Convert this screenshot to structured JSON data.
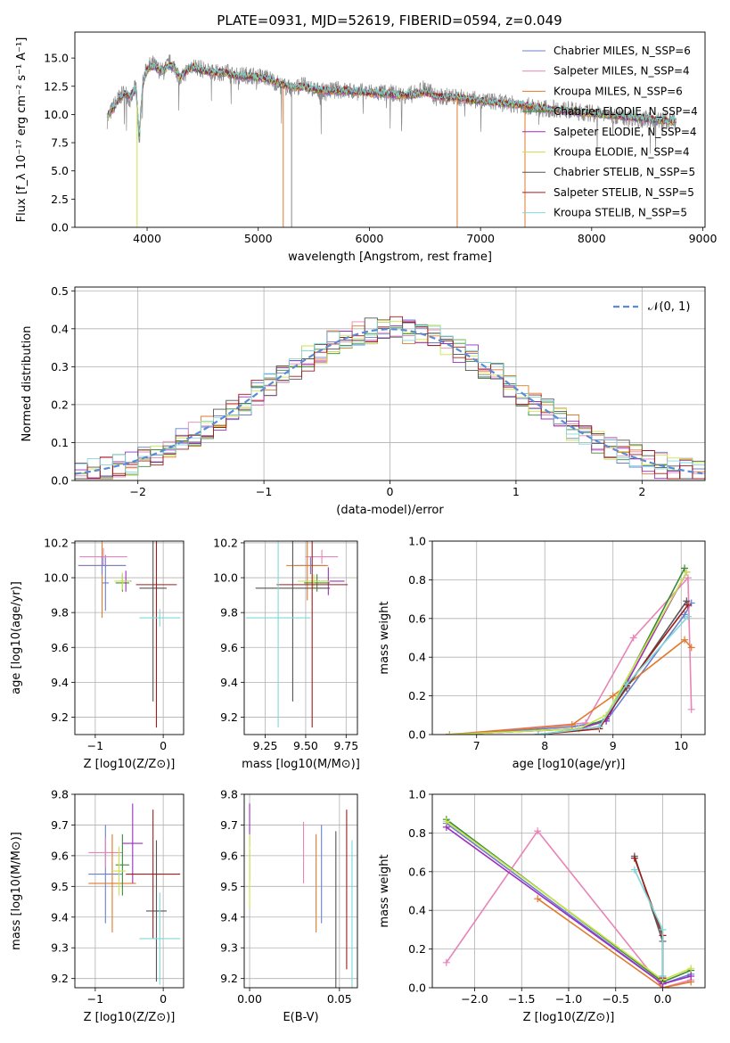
{
  "figure_title": "PLATE=0931, MJD=52619, FIBERID=0594, z=0.049",
  "colors": {
    "Chabrier MILES": "#6b7fd0",
    "Salpeter MILES": "#e884b6",
    "Kroupa MILES": "#e07a2c",
    "Chabrier ELODIE": "#3a8a3a",
    "Salpeter ELODIE": "#9b2ec0",
    "Kroupa ELODIE": "#cbe34a",
    "Chabrier STELIB": "#555555",
    "Salpeter STELIB": "#a01c1c",
    "Kroupa STELIB": "#7fd8d8",
    "data": "#8a8a8a",
    "normal_curve": "#5b8bd6"
  },
  "chart_data": [
    {
      "id": "spectrum",
      "type": "line",
      "title": "PLATE=0931, MJD=52619, FIBERID=0594, z=0.049",
      "xlabel": "wavelength [Angstrom, rest frame]",
      "ylabel": "Flux [f_λ 10⁻¹⁷ erg cm⁻² s⁻¹ A⁻¹]",
      "xlim": [
        3350,
        9020
      ],
      "ylim": [
        0,
        17.3
      ],
      "xticks": [
        "4000",
        "5000",
        "6000",
        "7000",
        "8000",
        "9000"
      ],
      "yticks": [
        "0.0",
        "2.5",
        "5.0",
        "7.5",
        "10.0",
        "12.5",
        "15.0"
      ],
      "legend": [
        "Chabrier MILES, N_SSP=6",
        "Salpeter MILES, N_SSP=4",
        "Kroupa MILES, N_SSP=6",
        "Chabrier ELODIE, N_SSP=4",
        "Salpeter ELODIE, N_SSP=4",
        "Kroupa ELODIE, N_SSP=4",
        "Chabrier STELIB, N_SSP=5",
        "Salpeter STELIB, N_SSP=5",
        "Kroupa STELIB, N_SSP=5"
      ],
      "legend_placement": "upper-right",
      "grid": false,
      "x": [
        3640,
        3700,
        3750,
        3800,
        3850,
        3900,
        3930,
        3960,
        4000,
        4050,
        4100,
        4150,
        4200,
        4250,
        4300,
        4350,
        4400,
        4500,
        4600,
        4700,
        4800,
        4900,
        5000,
        5100,
        5200,
        5300,
        5400,
        5500,
        5600,
        5700,
        5800,
        5900,
        6000,
        6100,
        6200,
        6300,
        6400,
        6500,
        6600,
        6700,
        6800,
        6900,
        7000,
        7100,
        7200,
        7300,
        7400,
        7500,
        7600,
        7700,
        7800,
        7900,
        8000,
        8100,
        8200,
        8300,
        8400,
        8500,
        8600,
        8700,
        8760
      ],
      "data_flux": [
        9.5,
        10.8,
        11.5,
        12.0,
        11.2,
        12.6,
        7.5,
        12.8,
        14.2,
        14.5,
        14.0,
        13.8,
        14.6,
        14.2,
        13.0,
        13.8,
        14.4,
        14.0,
        13.6,
        13.8,
        13.4,
        13.5,
        13.4,
        13.2,
        12.6,
        12.3,
        12.6,
        12.2,
        12.0,
        12.2,
        12.1,
        12.0,
        12.0,
        11.9,
        11.9,
        11.7,
        11.8,
        12.4,
        11.5,
        11.6,
        11.5,
        11.4,
        11.2,
        11.2,
        11.0,
        10.9,
        10.8,
        10.6,
        10.5,
        10.5,
        10.4,
        10.2,
        10.1,
        10.0,
        9.9,
        9.8,
        9.7,
        9.6,
        9.5,
        9.4,
        9.4
      ],
      "model_flux": [
        9.8,
        10.6,
        11.4,
        11.9,
        11.6,
        12.3,
        8.0,
        12.6,
        14.0,
        14.3,
        14.0,
        13.9,
        14.4,
        14.1,
        13.3,
        13.8,
        14.2,
        13.9,
        13.7,
        13.7,
        13.4,
        13.4,
        13.3,
        13.1,
        12.7,
        12.4,
        12.5,
        12.2,
        12.1,
        12.1,
        12.1,
        12.0,
        11.9,
        11.9,
        11.8,
        11.7,
        11.7,
        12.0,
        11.6,
        11.5,
        11.5,
        11.3,
        11.2,
        11.1,
        11.0,
        10.9,
        10.8,
        10.6,
        10.5,
        10.4,
        10.3,
        10.2,
        10.1,
        10.0,
        9.9,
        9.8,
        9.7,
        9.6,
        9.5,
        9.4,
        9.4
      ],
      "spikes": [
        {
          "x": 3910,
          "ymin": 0,
          "series": "Kroupa ELODIE"
        },
        {
          "x": 5225,
          "ymin": 0,
          "series": "Kroupa MILES"
        },
        {
          "x": 6790,
          "ymin": 0,
          "series": "Kroupa MILES"
        },
        {
          "x": 7400,
          "ymin": 0,
          "series": "Kroupa MILES"
        },
        {
          "x": 5300,
          "ymin": 0,
          "series": "data"
        }
      ]
    },
    {
      "id": "residuals",
      "type": "histogram",
      "xlabel": "(data-model)/error",
      "ylabel": "Normed distribution",
      "xlim": [
        -2.5,
        2.5
      ],
      "ylim": [
        0,
        0.51
      ],
      "xticks": [
        "−2",
        "−1",
        "0",
        "1",
        "2"
      ],
      "yticks": [
        "0.0",
        "0.1",
        "0.2",
        "0.3",
        "0.4",
        "0.5"
      ],
      "grid": true,
      "legend": [
        "𝒩(0, 1)"
      ],
      "legend_placement": "upper-right",
      "bin_edges_start": -2.5,
      "bin_width": 0.1
    },
    {
      "id": "age-vs-Z",
      "type": "errorbar",
      "xlabel": "Z [log10(Z/Z⊙)]",
      "ylabel": "age  [log10(age/yr)]",
      "xlim": [
        -1.3,
        0.3
      ],
      "ylim": [
        9.1,
        10.21
      ],
      "xticks": [
        "−1",
        "0"
      ],
      "yticks": [
        "9.2",
        "9.4",
        "9.6",
        "9.8",
        "10.0",
        "10.2"
      ],
      "grid": true,
      "points": [
        {
          "series": "Chabrier MILES",
          "x": -0.85,
          "y": 9.97,
          "xerr": 0.05,
          "yerr": 0.16
        },
        {
          "series": "Salpeter MILES",
          "x": -0.88,
          "y": 10.12,
          "xerr": 0.35,
          "yerr": 0.05
        },
        {
          "series": "Kroupa MILES",
          "x": -0.9,
          "y": 10.07,
          "xerr": 0.35,
          "yerr": 0.3
        },
        {
          "series": "Chabrier ELODIE",
          "x": -0.6,
          "y": 9.97,
          "xerr": 0.1,
          "yerr": 0.05
        },
        {
          "series": "Salpeter ELODIE",
          "x": -0.55,
          "y": 9.98,
          "xerr": 0.08,
          "yerr": 0.06
        },
        {
          "series": "Kroupa ELODIE",
          "x": -0.6,
          "y": 9.98,
          "xerr": 0.12,
          "yerr": 0.05
        },
        {
          "series": "Chabrier STELIB",
          "x": -0.15,
          "y": 9.94,
          "xerr": 0.2,
          "yerr": 0.65
        },
        {
          "series": "Salpeter STELIB",
          "x": -0.1,
          "y": 9.96,
          "xerr": 0.3,
          "yerr": 0.82
        },
        {
          "series": "Kroupa STELIB",
          "x": -0.05,
          "y": 9.77,
          "xerr": 0.3,
          "yerr": 0.05
        },
        {
          "series": "Chabrier MILES",
          "x": -0.9,
          "y": 10.07,
          "xerr": 0.35,
          "yerr": 0.05
        }
      ]
    },
    {
      "id": "age-vs-mass",
      "type": "errorbar",
      "xlabel": "mass [log10(M/M⊙)]",
      "ylabel": "",
      "xlim": [
        9.12,
        9.82
      ],
      "ylim": [
        9.1,
        10.21
      ],
      "xticks": [
        "9.25",
        "9.50",
        "9.75"
      ],
      "yticks": [
        "9.2",
        "9.4",
        "9.6",
        "9.8",
        "10.0",
        "10.2"
      ],
      "grid": true,
      "points": [
        {
          "series": "Chabrier MILES",
          "x": 9.53,
          "y": 10.07,
          "xerr": 0.1,
          "yerr": 0.05
        },
        {
          "series": "Salpeter MILES",
          "x": 9.6,
          "y": 10.12,
          "xerr": 0.1,
          "yerr": 0.04
        },
        {
          "series": "Kroupa MILES",
          "x": 9.51,
          "y": 10.07,
          "xerr": 0.13,
          "yerr": 0.2
        },
        {
          "series": "Chabrier ELODIE",
          "x": 9.57,
          "y": 9.97,
          "xerr": 0.08,
          "yerr": 0.05
        },
        {
          "series": "Salpeter ELODIE",
          "x": 9.64,
          "y": 9.98,
          "xerr": 0.1,
          "yerr": 0.08
        },
        {
          "series": "Kroupa ELODIE",
          "x": 9.55,
          "y": 9.98,
          "xerr": 0.1,
          "yerr": 0.04
        },
        {
          "series": "Chabrier STELIB",
          "x": 9.42,
          "y": 9.94,
          "xerr": 0.23,
          "yerr": 0.65
        },
        {
          "series": "Salpeter STELIB",
          "x": 9.54,
          "y": 9.96,
          "xerr": 0.22,
          "yerr": 0.82
        },
        {
          "series": "Kroupa STELIB",
          "x": 9.33,
          "y": 9.77,
          "xerr": 0.2,
          "yerr": 0.63
        }
      ]
    },
    {
      "id": "weight-vs-age",
      "type": "line",
      "xlabel": "age  [log10(age/yr)]",
      "ylabel": "mass weight",
      "xlim": [
        6.35,
        10.35
      ],
      "ylim": [
        0,
        1.0
      ],
      "xticks": [
        "7",
        "8",
        "9",
        "10"
      ],
      "yticks": [
        "0.0",
        "0.2",
        "0.4",
        "0.6",
        "0.8",
        "1.0"
      ],
      "grid": true,
      "series": [
        {
          "name": "Chabrier MILES",
          "x": [
            6.6,
            8.4,
            8.9,
            10.05,
            10.15
          ],
          "y": [
            0.0,
            0.04,
            0.07,
            0.62,
            0.68
          ]
        },
        {
          "name": "Salpeter MILES",
          "x": [
            6.6,
            8.6,
            9.3,
            10.1,
            10.15
          ],
          "y": [
            0.0,
            0.06,
            0.5,
            0.81,
            0.13
          ]
        },
        {
          "name": "Kroupa MILES",
          "x": [
            6.6,
            8.4,
            9.0,
            10.05,
            10.15
          ],
          "y": [
            0.0,
            0.05,
            0.2,
            0.49,
            0.45
          ]
        },
        {
          "name": "Chabrier ELODIE",
          "x": [
            6.6,
            8.5,
            8.9,
            10.05
          ],
          "y": [
            0.0,
            0.03,
            0.08,
            0.86
          ]
        },
        {
          "name": "Salpeter ELODIE",
          "x": [
            6.6,
            8.5,
            8.9,
            10.08
          ],
          "y": [
            0.0,
            0.03,
            0.07,
            0.84
          ]
        },
        {
          "name": "Kroupa ELODIE",
          "x": [
            6.6,
            8.5,
            8.9,
            10.08
          ],
          "y": [
            0.0,
            0.03,
            0.1,
            0.84
          ]
        },
        {
          "name": "Chabrier STELIB",
          "x": [
            7.9,
            8.8,
            9.2,
            10.08
          ],
          "y": [
            0.0,
            0.04,
            0.24,
            0.69
          ]
        },
        {
          "name": "Salpeter STELIB",
          "x": [
            7.9,
            8.8,
            9.2,
            10.1
          ],
          "y": [
            0.0,
            0.03,
            0.25,
            0.67
          ]
        },
        {
          "name": "Kroupa STELIB",
          "x": [
            7.9,
            8.8,
            9.2,
            10.1
          ],
          "y": [
            0.0,
            0.04,
            0.26,
            0.61
          ]
        }
      ]
    },
    {
      "id": "mass-vs-Z",
      "type": "errorbar",
      "xlabel": "Z [log10(Z/Z⊙)]",
      "ylabel": "mass [log10(M/M⊙)]",
      "xlim": [
        -1.3,
        0.3
      ],
      "ylim": [
        9.17,
        9.8
      ],
      "xticks": [
        "−1",
        "0"
      ],
      "yticks": [
        "9.2",
        "9.3",
        "9.4",
        "9.5",
        "9.6",
        "9.7",
        "9.8"
      ],
      "grid": true,
      "points": [
        {
          "series": "Chabrier MILES",
          "x": -0.85,
          "y": 9.54,
          "xerr": 0.25,
          "yerr": 0.16
        },
        {
          "series": "Salpeter MILES",
          "x": -0.85,
          "y": 9.61,
          "xerr": 0.25,
          "yerr": 0.05
        },
        {
          "series": "Kroupa MILES",
          "x": -0.75,
          "y": 9.51,
          "xerr": 0.35,
          "yerr": 0.16
        },
        {
          "series": "Chabrier ELODIE",
          "x": -0.6,
          "y": 9.57,
          "xerr": 0.1,
          "yerr": 0.1
        },
        {
          "series": "Salpeter ELODIE",
          "x": -0.45,
          "y": 9.64,
          "xerr": 0.15,
          "yerr": 0.13
        },
        {
          "series": "Kroupa ELODIE",
          "x": -0.65,
          "y": 9.55,
          "xerr": 0.1,
          "yerr": 0.08
        },
        {
          "series": "Chabrier STELIB",
          "x": -0.1,
          "y": 9.42,
          "xerr": 0.15,
          "yerr": 0.23
        },
        {
          "series": "Salpeter STELIB",
          "x": -0.15,
          "y": 9.54,
          "xerr": 0.4,
          "yerr": 0.21
        },
        {
          "series": "Kroupa STELIB",
          "x": -0.05,
          "y": 9.33,
          "xerr": 0.3,
          "yerr": 0.15
        }
      ]
    },
    {
      "id": "mass-vs-ebv",
      "type": "errorbar",
      "xlabel": "E(B-V)",
      "ylabel": "",
      "xlim": [
        -0.003,
        0.06
      ],
      "ylim": [
        9.17,
        9.8
      ],
      "xticks": [
        "0.00",
        "0.05"
      ],
      "yticks": [
        "9.2",
        "9.3",
        "9.4",
        "9.5",
        "9.6",
        "9.7",
        "9.8"
      ],
      "grid": true,
      "points": [
        {
          "series": "Chabrier MILES",
          "x": 0.04,
          "y": 9.54,
          "xerr": 0,
          "yerr": 0.16
        },
        {
          "series": "Salpeter MILES",
          "x": 0.03,
          "y": 9.61,
          "xerr": 0,
          "yerr": 0.1
        },
        {
          "series": "Kroupa MILES",
          "x": 0.037,
          "y": 9.51,
          "xerr": 0,
          "yerr": 0.16
        },
        {
          "series": "Chabrier ELODIE",
          "x": 0.0,
          "y": 9.57,
          "xerr": 0,
          "yerr": 0.05
        },
        {
          "series": "Salpeter ELODIE",
          "x": 0.0,
          "y": 9.7,
          "xerr": 0,
          "yerr": 0.07
        },
        {
          "series": "Kroupa ELODIE",
          "x": 0.0,
          "y": 9.55,
          "xerr": 0,
          "yerr": 0.12
        },
        {
          "series": "Chabrier STELIB",
          "x": 0.048,
          "y": 9.42,
          "xerr": 0,
          "yerr": 0.26
        },
        {
          "series": "Salpeter STELIB",
          "x": 0.054,
          "y": 9.49,
          "xerr": 0,
          "yerr": 0.26
        },
        {
          "series": "Kroupa STELIB",
          "x": 0.057,
          "y": 9.41,
          "xerr": 0,
          "yerr": 0.24
        }
      ]
    },
    {
      "id": "weight-vs-Z",
      "type": "line",
      "xlabel": "Z [log10(Z/Z⊙)]",
      "ylabel": "mass weight",
      "xlim": [
        -2.45,
        0.45
      ],
      "ylim": [
        0,
        1.0
      ],
      "xticks": [
        "−2.0",
        "−1.5",
        "−1.0",
        "−0.5",
        "0.0"
      ],
      "yticks": [
        "0.0",
        "0.2",
        "0.4",
        "0.6",
        "0.8",
        "1.0"
      ],
      "grid": true,
      "series": [
        {
          "name": "Chabrier MILES",
          "x": [
            -2.3,
            0.0,
            0.3
          ],
          "y": [
            0.85,
            0.02,
            0.07
          ]
        },
        {
          "name": "Salpeter MILES",
          "x": [
            -2.3,
            -1.33,
            0.0,
            0.3
          ],
          "y": [
            0.13,
            0.81,
            0.0,
            0.04
          ]
        },
        {
          "name": "Kroupa MILES",
          "x": [
            -1.33,
            0.0,
            0.3
          ],
          "y": [
            0.46,
            0.0,
            0.03
          ]
        },
        {
          "name": "Chabrier ELODIE",
          "x": [
            -2.3,
            0.0,
            0.3
          ],
          "y": [
            0.87,
            0.03,
            0.09
          ]
        },
        {
          "name": "Salpeter ELODIE",
          "x": [
            -2.3,
            0.0,
            0.3
          ],
          "y": [
            0.83,
            0.02,
            0.06
          ]
        },
        {
          "name": "Kroupa ELODIE",
          "x": [
            -2.3,
            0.0,
            0.3
          ],
          "y": [
            0.86,
            0.04,
            0.1
          ]
        },
        {
          "name": "Chabrier STELIB",
          "x": [
            -0.3,
            0.0,
            0.0
          ],
          "y": [
            0.68,
            0.24,
            0.06
          ]
        },
        {
          "name": "Salpeter STELIB",
          "x": [
            -0.3,
            0.0,
            0.0
          ],
          "y": [
            0.67,
            0.27,
            0.05
          ]
        },
        {
          "name": "Kroupa STELIB",
          "x": [
            -0.3,
            0.0,
            0.0
          ],
          "y": [
            0.61,
            0.3,
            0.06
          ]
        }
      ]
    }
  ]
}
